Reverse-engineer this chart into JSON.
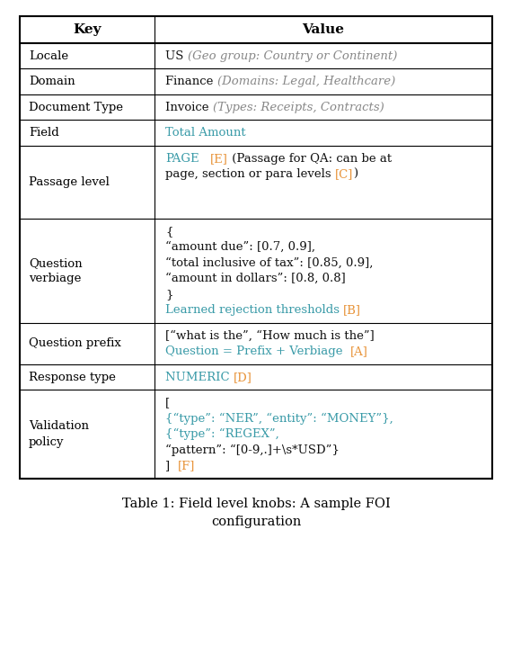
{
  "title": "Table 1: Field level knobs: A sample FOI\nconfiguration",
  "header": [
    "Key",
    "Value"
  ],
  "teal": "#3A9BA8",
  "orange": "#E8943A",
  "black": "#111111",
  "gray": "#666666",
  "col_ratio": 0.285,
  "rows": [
    {
      "key": [
        "Locale"
      ],
      "value_lines": [
        [
          {
            "text": "US ",
            "color": "#111111",
            "bold": false,
            "italic": false
          },
          {
            "text": "(Geo group: Country or Continent)",
            "color": "#888888",
            "bold": false,
            "italic": true
          }
        ]
      ]
    },
    {
      "key": [
        "Domain"
      ],
      "value_lines": [
        [
          {
            "text": "Finance ",
            "color": "#111111",
            "bold": false,
            "italic": false
          },
          {
            "text": "(Domains: Legal, Healthcare)",
            "color": "#888888",
            "bold": false,
            "italic": true
          }
        ]
      ]
    },
    {
      "key": [
        "Document Type"
      ],
      "value_lines": [
        [
          {
            "text": "Invoice ",
            "color": "#111111",
            "bold": false,
            "italic": false
          },
          {
            "text": "(Types: Receipts, Contracts)",
            "color": "#888888",
            "bold": false,
            "italic": true
          }
        ]
      ]
    },
    {
      "key": [
        "Field"
      ],
      "value_lines": [
        [
          {
            "text": "Total Amount",
            "color": "#3A9BA8",
            "bold": false,
            "italic": false
          }
        ]
      ]
    },
    {
      "key": [
        "Passage level"
      ],
      "value_lines": [
        [
          {
            "text": "PAGE",
            "color": "#3A9BA8",
            "bold": false,
            "italic": false
          },
          {
            "text": "   ",
            "color": "#111111",
            "bold": false,
            "italic": false
          },
          {
            "text": "[E]",
            "color": "#E8943A",
            "bold": false,
            "italic": false
          },
          {
            "text": " (Passage for QA: can be at",
            "color": "#111111",
            "bold": false,
            "italic": false
          }
        ],
        [
          {
            "text": "page, section or para levels ",
            "color": "#111111",
            "bold": false,
            "italic": false
          },
          {
            "text": "[C]",
            "color": "#E8943A",
            "bold": false,
            "italic": false
          },
          {
            "text": ")",
            "color": "#111111",
            "bold": false,
            "italic": false
          }
        ],
        [],
        []
      ]
    },
    {
      "key": [
        "Question",
        "verbiage"
      ],
      "value_lines": [
        [
          {
            "text": "{",
            "color": "#111111",
            "bold": false,
            "italic": false
          }
        ],
        [
          {
            "text": "“amount due”: [0.7, 0.9],",
            "color": "#111111",
            "bold": false,
            "italic": false
          }
        ],
        [
          {
            "text": "“total inclusive of tax”: [0.85, 0.9],",
            "color": "#111111",
            "bold": false,
            "italic": false
          }
        ],
        [
          {
            "text": "“amount in dollars”: [0.8, 0.8]",
            "color": "#111111",
            "bold": false,
            "italic": false
          }
        ],
        [
          {
            "text": "}",
            "color": "#111111",
            "bold": false,
            "italic": false
          }
        ],
        [
          {
            "text": "Learned rejection thresholds ",
            "color": "#3A9BA8",
            "bold": false,
            "italic": false
          },
          {
            "text": "[B]",
            "color": "#E8943A",
            "bold": false,
            "italic": false
          }
        ]
      ]
    },
    {
      "key": [
        "Question prefix"
      ],
      "value_lines": [
        [
          {
            "text": "[“what is the”, “How much is the”]",
            "color": "#111111",
            "bold": false,
            "italic": false
          }
        ],
        [
          {
            "text": "Question = Prefix + Verbiage  ",
            "color": "#3A9BA8",
            "bold": false,
            "italic": false
          },
          {
            "text": "[A]",
            "color": "#E8943A",
            "bold": false,
            "italic": false
          }
        ]
      ]
    },
    {
      "key": [
        "Response type"
      ],
      "value_lines": [
        [
          {
            "text": "NUMERIC ",
            "color": "#3A9BA8",
            "bold": false,
            "italic": false
          },
          {
            "text": "[D]",
            "color": "#E8943A",
            "bold": false,
            "italic": false
          }
        ]
      ]
    },
    {
      "key": [
        "Validation",
        "policy"
      ],
      "value_lines": [
        [
          {
            "text": "[",
            "color": "#111111",
            "bold": false,
            "italic": false
          }
        ],
        [
          {
            "text": "{“type”: “NER”, “entity”: “MONEY”},",
            "color": "#3A9BA8",
            "bold": false,
            "italic": false
          }
        ],
        [
          {
            "text": "{“type”: “REGEX”,",
            "color": "#3A9BA8",
            "bold": false,
            "italic": false
          }
        ],
        [
          {
            "text": "“pattern”: “[0-9,.]+\\s*USD”}",
            "color": "#111111",
            "bold": false,
            "italic": false
          }
        ],
        [
          {
            "text": "]  ",
            "color": "#111111",
            "bold": false,
            "italic": false
          },
          {
            "text": "[F]",
            "color": "#E8943A",
            "bold": false,
            "italic": false
          }
        ]
      ]
    }
  ]
}
